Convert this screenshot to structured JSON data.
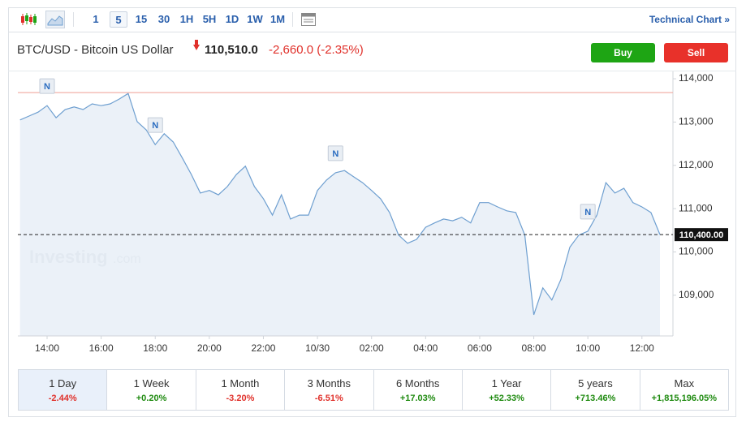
{
  "toolbar": {
    "intervals": [
      "1",
      "5",
      "15",
      "30",
      "1H",
      "5H",
      "1D",
      "1W",
      "1M"
    ],
    "selected": 1,
    "technical_chart": "Technical Chart »"
  },
  "header": {
    "title": "BTC/USD - Bitcoin US Dollar",
    "price": "110,510.0",
    "change": "-2,660.0",
    "change_percent": "(-2.35%)",
    "buy": "Buy",
    "sell": "Sell"
  },
  "chart_data": {
    "type": "area",
    "color": "#6e9fd0",
    "fill": "#e7eef7",
    "values": [
      113050,
      113140,
      113230,
      113380,
      113100,
      113290,
      113350,
      113290,
      113420,
      113380,
      113420,
      113530,
      113660,
      113010,
      112820,
      112480,
      112730,
      112540,
      112170,
      111790,
      111360,
      111420,
      111320,
      111510,
      111790,
      111980,
      111510,
      111230,
      110850,
      111320,
      110760,
      110850,
      110850,
      111420,
      111660,
      111830,
      111880,
      111740,
      111600,
      111420,
      111230,
      110910,
      110390,
      110200,
      110290,
      110570,
      110670,
      110760,
      110720,
      110800,
      110670,
      111140,
      111140,
      111040,
      110950,
      110910,
      110390,
      108550,
      109170,
      108890,
      109360,
      110110,
      110390,
      110480,
      110850,
      111600,
      111360,
      111470,
      111140,
      111040,
      110910,
      110400
    ],
    "xlim": [
      0,
      71
    ],
    "xticks": [
      {
        "value": 3,
        "label": "14:00"
      },
      {
        "value": 9,
        "label": "16:00"
      },
      {
        "value": 15,
        "label": "18:00"
      },
      {
        "value": 21,
        "label": "20:00"
      },
      {
        "value": 27,
        "label": "22:00"
      },
      {
        "value": 33,
        "label": "10/30"
      },
      {
        "value": 39,
        "label": "02:00"
      },
      {
        "value": 45,
        "label": "04:00"
      },
      {
        "value": 51,
        "label": "06:00"
      },
      {
        "value": 57,
        "label": "08:00"
      },
      {
        "value": 63,
        "label": "10:00"
      },
      {
        "value": 69,
        "label": "12:00"
      }
    ],
    "ylim": [
      108060,
      114170
    ],
    "yticks": [
      {
        "value": 109000,
        "label": "109,000"
      },
      {
        "value": 110000,
        "label": "110,000"
      },
      {
        "value": 111000,
        "label": "111,000"
      },
      {
        "value": 112000,
        "label": "112,000"
      },
      {
        "value": 113000,
        "label": "113,000"
      },
      {
        "value": 114000,
        "label": "114,000"
      }
    ],
    "current_price": {
      "value": 110400,
      "label": "110,400.00"
    },
    "reference_line": {
      "value": 113680,
      "color": "#f2b1a8"
    },
    "news_markers": [
      {
        "x": 3,
        "label": "N"
      },
      {
        "x": 15,
        "label": "N"
      },
      {
        "x": 35,
        "label": "N"
      },
      {
        "x": 63,
        "label": "N"
      }
    ],
    "watermark": {
      "brand": "Investing",
      "suffix": ".com"
    }
  },
  "periods": {
    "selected": 0,
    "items": [
      {
        "label": "1 Day",
        "change": "-2.44%"
      },
      {
        "label": "1 Week",
        "change": "+0.20%"
      },
      {
        "label": "1 Month",
        "change": "-3.20%"
      },
      {
        "label": "3 Months",
        "change": "-6.51%"
      },
      {
        "label": "6 Months",
        "change": "+17.03%"
      },
      {
        "label": "1 Year",
        "change": "+52.33%"
      },
      {
        "label": "5 years",
        "change": "+713.46%"
      },
      {
        "label": "Max",
        "change": "+1,815,196.05%"
      }
    ]
  }
}
